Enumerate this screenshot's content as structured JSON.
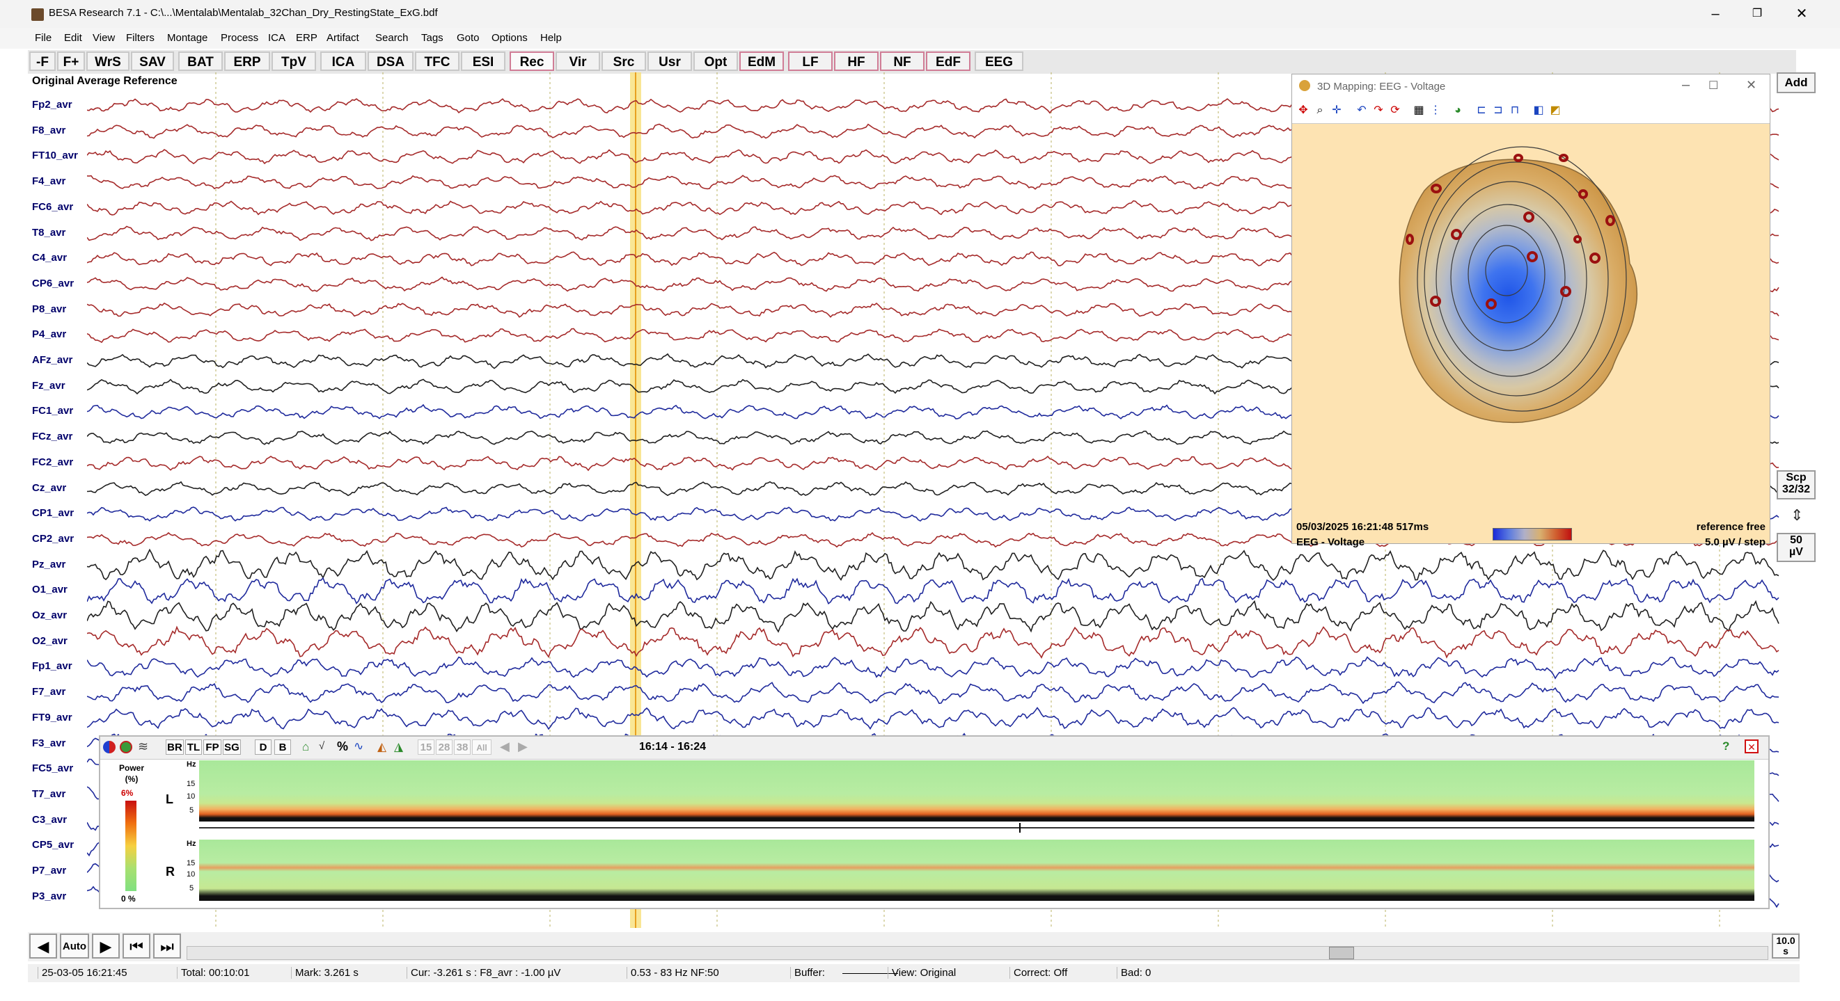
{
  "window": {
    "title": "BESA Research 7.1 - C:\\...\\Mentalab\\Mentalab_32Chan_Dry_RestingState_ExG.bdf",
    "minimize": "–",
    "maximize": "❐",
    "close": "✕"
  },
  "menu": [
    "File",
    "Edit",
    "View",
    "Filters",
    "Montage",
    "Process",
    "ICA",
    "ERP",
    "Artifact",
    "Search",
    "Tags",
    "Goto",
    "Options",
    "Help"
  ],
  "toolbar": [
    "-F",
    "F+",
    "WrS",
    "SAV",
    "BAT",
    "ERP",
    "TpV",
    "ICA",
    "DSA",
    "TFC",
    "ESI",
    "Rec",
    "Vir",
    "Src",
    "Usr",
    "Opt",
    "EdM",
    "LF",
    "HF",
    "NF",
    "EdF",
    "EEG"
  ],
  "toolbar_active": "Rec",
  "view_title": "Original Average Reference",
  "channels": [
    {
      "name": "Fp2_avr",
      "color": "#a52a2a"
    },
    {
      "name": "F8_avr",
      "color": "#a52a2a"
    },
    {
      "name": "FT10_avr",
      "color": "#a52a2a"
    },
    {
      "name": "F4_avr",
      "color": "#a52a2a"
    },
    {
      "name": "FC6_avr",
      "color": "#a52a2a"
    },
    {
      "name": "T8_avr",
      "color": "#a52a2a"
    },
    {
      "name": "C4_avr",
      "color": "#a52a2a"
    },
    {
      "name": "CP6_avr",
      "color": "#a52a2a"
    },
    {
      "name": "P8_avr",
      "color": "#a52a2a"
    },
    {
      "name": "P4_avr",
      "color": "#a52a2a"
    },
    {
      "name": "AFz_avr",
      "color": "#202020"
    },
    {
      "name": "Fz_avr",
      "color": "#202020"
    },
    {
      "name": "FC1_avr",
      "color": "#1f2a9c"
    },
    {
      "name": "FCz_avr",
      "color": "#202020"
    },
    {
      "name": "FC2_avr",
      "color": "#a52a2a"
    },
    {
      "name": "Cz_avr",
      "color": "#202020"
    },
    {
      "name": "CP1_avr",
      "color": "#1f2a9c"
    },
    {
      "name": "CP2_avr",
      "color": "#a52a2a"
    },
    {
      "name": "Pz_avr",
      "color": "#202020"
    },
    {
      "name": "O1_avr",
      "color": "#1f2a9c"
    },
    {
      "name": "Oz_avr",
      "color": "#202020"
    },
    {
      "name": "O2_avr",
      "color": "#a52a2a"
    },
    {
      "name": "Fp1_avr",
      "color": "#1f2a9c"
    },
    {
      "name": "F7_avr",
      "color": "#1f2a9c"
    },
    {
      "name": "FT9_avr",
      "color": "#1f2a9c"
    },
    {
      "name": "F3_avr",
      "color": "#1f2a9c"
    },
    {
      "name": "FC5_avr",
      "color": "#1f2a9c"
    },
    {
      "name": "T7_avr",
      "color": "#1f2a9c"
    },
    {
      "name": "C3_avr",
      "color": "#1f2a9c"
    },
    {
      "name": "CP5_avr",
      "color": "#1f2a9c"
    },
    {
      "name": "P7_avr",
      "color": "#1f2a9c"
    },
    {
      "name": "P3_avr",
      "color": "#1f2a9c"
    }
  ],
  "right_panel": {
    "add": "Add",
    "scp": "Scp",
    "scp_count": "32/32",
    "scale_value": "50",
    "scale_unit": "µV"
  },
  "map_window": {
    "title": "3D Mapping: EEG - Voltage",
    "timestamp": "05/03/2025 16:21:48 517ms",
    "mode": "EEG - Voltage",
    "reference": "reference free",
    "step": "5.0 µV / step",
    "colors": {
      "positive": "#c8913b",
      "negative": "#2f5fe0",
      "background": "#fde3b2"
    }
  },
  "spectrogram": {
    "time_range": "16:14 - 16:24",
    "tools": [
      "BR",
      "TL",
      "FP",
      "SG",
      "D",
      "B",
      "15",
      "28",
      "38",
      "All"
    ],
    "legend_title": "Power",
    "legend_unit": "(%)",
    "legend_max": "6%",
    "legend_min": "0 %",
    "hz_label": "Hz",
    "hz_ticks": [
      "15",
      "10",
      "5"
    ],
    "left_label": "L",
    "right_label": "R"
  },
  "nav": {
    "auto": "Auto",
    "play_icon": "▶",
    "back_icon": "◀",
    "page_back_icon": "⏮",
    "page_fwd_icon": "⏭",
    "timebase_value": "10.0",
    "timebase_unit": "s"
  },
  "status": {
    "datetime": "25-03-05  16:21:45",
    "total": "Total: 00:10:01",
    "mark": "Mark: 3.261 s",
    "cursor": "Cur: -3.261 s : F8_avr : -1.00 µV",
    "filter": "0.53 - 83 Hz  NF:50",
    "buffer": "Buffer:",
    "view": "View: Original",
    "correct": "Correct: Off",
    "bad": "Bad: 0"
  }
}
